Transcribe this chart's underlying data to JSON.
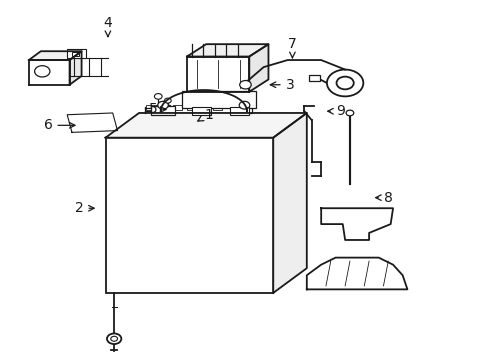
{
  "background_color": "#ffffff",
  "line_color": "#1a1a1a",
  "figsize": [
    4.89,
    3.6
  ],
  "dpi": 100,
  "label_fontsize": 10,
  "labels": {
    "1": {
      "num": [
        0.425,
        0.685
      ],
      "arrow_to": [
        0.4,
        0.665
      ]
    },
    "2": {
      "num": [
        0.155,
        0.42
      ],
      "arrow_to": [
        0.195,
        0.42
      ]
    },
    "3": {
      "num": [
        0.595,
        0.77
      ],
      "arrow_to": [
        0.545,
        0.77
      ]
    },
    "4": {
      "num": [
        0.215,
        0.945
      ],
      "arrow_to": [
        0.215,
        0.895
      ]
    },
    "5": {
      "num": [
        0.31,
        0.7
      ],
      "arrow_to": [
        0.345,
        0.7
      ]
    },
    "6": {
      "num": [
        0.09,
        0.655
      ],
      "arrow_to": [
        0.155,
        0.655
      ]
    },
    "7": {
      "num": [
        0.6,
        0.885
      ],
      "arrow_to": [
        0.6,
        0.835
      ]
    },
    "8": {
      "num": [
        0.8,
        0.45
      ],
      "arrow_to": [
        0.765,
        0.45
      ]
    },
    "9": {
      "num": [
        0.7,
        0.695
      ],
      "arrow_to": [
        0.665,
        0.695
      ]
    }
  }
}
